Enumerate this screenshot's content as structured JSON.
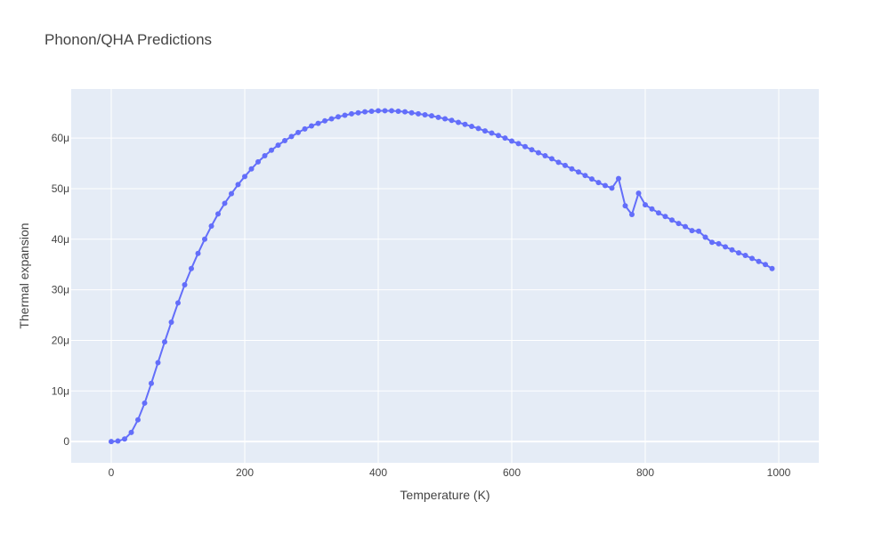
{
  "chart_data": {
    "type": "line",
    "title": "Phonon/QHA Predictions",
    "xlabel": "Temperature (K)",
    "ylabel": "Thermal expansion",
    "xlim": [
      -60,
      1060
    ],
    "ylim": [
      -4.2e-06,
      6.97e-05
    ],
    "x_ticks": [
      0,
      200,
      400,
      600,
      800,
      1000
    ],
    "x_tick_labels": [
      "0",
      "200",
      "400",
      "600",
      "800",
      "1000"
    ],
    "y_ticks": [
      0,
      1e-05,
      2e-05,
      3e-05,
      4e-05,
      5e-05,
      6e-05
    ],
    "y_tick_labels": [
      "0",
      "10μ",
      "20μ",
      "30μ",
      "40μ",
      "50μ",
      "60μ"
    ],
    "grid": true,
    "legend": false,
    "colors": {
      "plot_bg": "#e5ecf6",
      "grid": "#ffffff",
      "series": "#636efa",
      "text": "#444444"
    },
    "series": [
      {
        "mode": "lines+markers",
        "x": [
          0,
          10,
          20,
          30,
          40,
          50,
          60,
          70,
          80,
          90,
          100,
          110,
          120,
          130,
          140,
          150,
          160,
          170,
          180,
          190,
          200,
          210,
          220,
          230,
          240,
          250,
          260,
          270,
          280,
          290,
          300,
          310,
          320,
          330,
          340,
          350,
          360,
          370,
          380,
          390,
          400,
          410,
          420,
          430,
          440,
          450,
          460,
          470,
          480,
          490,
          500,
          510,
          520,
          530,
          540,
          550,
          560,
          570,
          580,
          590,
          600,
          610,
          620,
          630,
          640,
          650,
          660,
          670,
          680,
          690,
          700,
          710,
          720,
          730,
          740,
          750,
          760,
          770,
          780,
          790,
          800,
          810,
          820,
          830,
          840,
          850,
          860,
          870,
          880,
          890,
          900,
          910,
          920,
          930,
          940,
          950,
          960,
          970,
          980,
          990
        ],
        "y": [
          0.0,
          1e-07,
          5e-07,
          1.8e-06,
          4.3e-06,
          7.6e-06,
          1.15e-05,
          1.56e-05,
          1.97e-05,
          2.36e-05,
          2.74e-05,
          3.1e-05,
          3.42e-05,
          3.72e-05,
          4e-05,
          4.26e-05,
          4.5e-05,
          4.71e-05,
          4.9e-05,
          5.08e-05,
          5.24e-05,
          5.39e-05,
          5.53e-05,
          5.65e-05,
          5.76e-05,
          5.86e-05,
          5.95e-05,
          6.03e-05,
          6.11e-05,
          6.18e-05,
          6.24e-05,
          6.29e-05,
          6.34e-05,
          6.38e-05,
          6.42e-05,
          6.45e-05,
          6.48e-05,
          6.5e-05,
          6.52e-05,
          6.53e-05,
          6.54e-05,
          6.54e-05,
          6.54e-05,
          6.53e-05,
          6.52e-05,
          6.5e-05,
          6.48e-05,
          6.46e-05,
          6.44e-05,
          6.41e-05,
          6.38e-05,
          6.35e-05,
          6.31e-05,
          6.27e-05,
          6.23e-05,
          6.19e-05,
          6.14e-05,
          6.1e-05,
          6.05e-05,
          6e-05,
          5.94e-05,
          5.89e-05,
          5.83e-05,
          5.77e-05,
          5.71e-05,
          5.65e-05,
          5.59e-05,
          5.52e-05,
          5.46e-05,
          5.39e-05,
          5.33e-05,
          5.26e-05,
          5.19e-05,
          5.12e-05,
          5.06e-05,
          5.01e-05,
          5.2e-05,
          4.66e-05,
          4.49e-05,
          4.91e-05,
          4.68e-05,
          4.6e-05,
          4.52e-05,
          4.45e-05,
          4.38e-05,
          4.31e-05,
          4.25e-05,
          4.17e-05,
          4.16e-05,
          4.04e-05,
          3.94e-05,
          3.91e-05,
          3.85e-05,
          3.79e-05,
          3.73e-05,
          3.68e-05,
          3.62e-05,
          3.56e-05,
          3.5e-05,
          3.42e-05
        ]
      }
    ]
  }
}
